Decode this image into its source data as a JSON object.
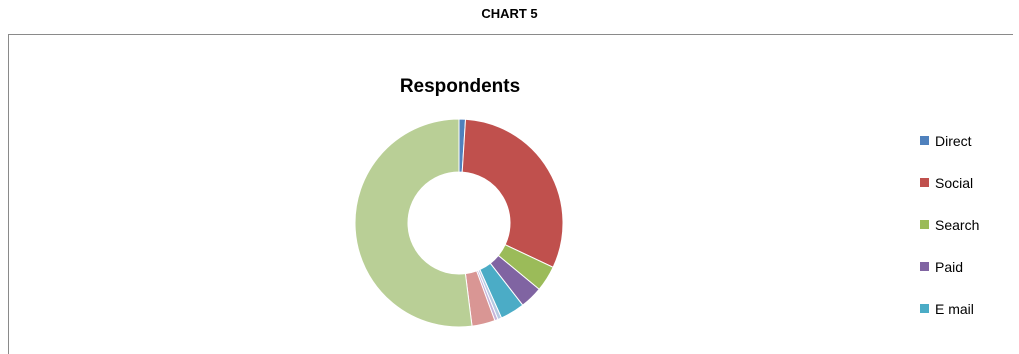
{
  "caption": "CHART 5",
  "chart_data": {
    "type": "pie",
    "donut": true,
    "title": "Respondents",
    "legend_position": "right",
    "categories": [
      "Direct",
      "Social",
      "Search",
      "Paid",
      "E mail",
      "",
      "",
      "",
      ""
    ],
    "values": [
      1,
      31,
      4,
      3.5,
      3.8,
      0.6,
      0.5,
      3.6,
      52
    ],
    "colors": [
      "#4f81bd",
      "#c0504d",
      "#9bbb59",
      "#8064a2",
      "#4bacc6",
      "#b7c9e2",
      "#c5b3d9",
      "#d99694",
      "#b9cf96"
    ],
    "legend": [
      {
        "label": "Direct",
        "color": "#4f81bd"
      },
      {
        "label": "Social",
        "color": "#c0504d"
      },
      {
        "label": "Search",
        "color": "#9bbb59"
      },
      {
        "label": "Paid",
        "color": "#8064a2"
      },
      {
        "label": "E mail",
        "color": "#4bacc6"
      }
    ]
  }
}
